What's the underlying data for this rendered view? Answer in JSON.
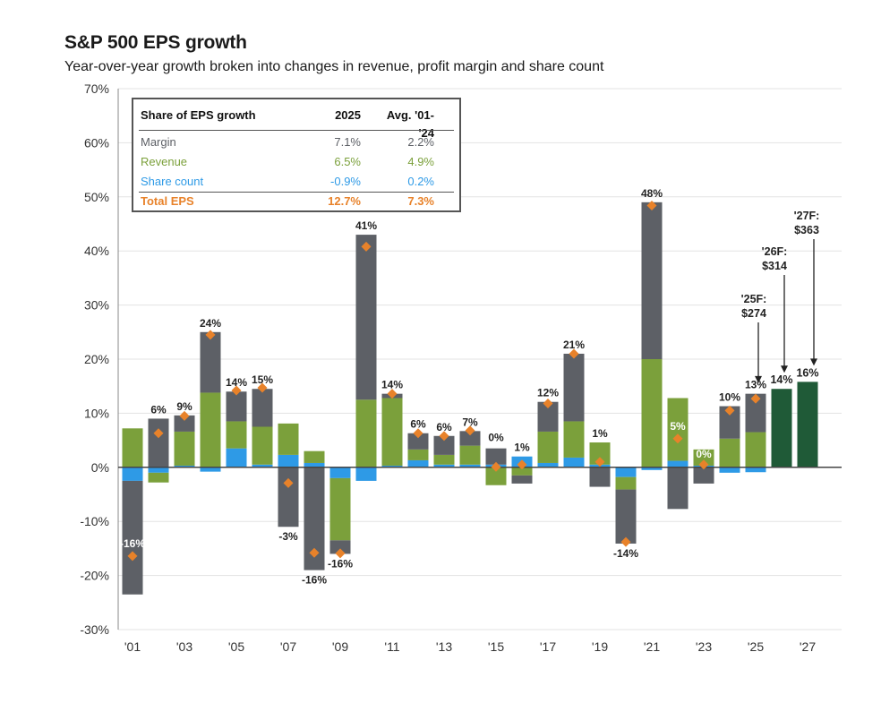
{
  "title": "S&P 500 EPS growth",
  "subtitle": "Year-over-year growth broken into changes in revenue, profit margin and share count",
  "colors": {
    "margin": "#5d6066",
    "revenue": "#7ba03b",
    "share_count": "#2e9ae6",
    "total_eps": "#e8822a",
    "forecast": "#1f5a37",
    "text": "#1a1a1a"
  },
  "legend_table": {
    "header": {
      "label": "Share of EPS growth",
      "col1": "2025",
      "col2": "Avg. '01-'24"
    },
    "rows": [
      {
        "label": "Margin",
        "col1": "7.1%",
        "col2": "2.2%",
        "color": "#5d6066"
      },
      {
        "label": "Revenue",
        "col1": "6.5%",
        "col2": "4.9%",
        "color": "#7ba03b"
      },
      {
        "label": "Share count",
        "col1": "-0.9%",
        "col2": "0.2%",
        "color": "#2e9ae6"
      },
      {
        "label": "Total EPS",
        "col1": "12.7%",
        "col2": "7.3%",
        "color": "#e8822a"
      }
    ]
  },
  "chart_data": {
    "type": "bar",
    "stacked": true,
    "title": "S&P 500 EPS growth",
    "ylim": [
      -30,
      70
    ],
    "yticks": [
      "-30%",
      "-20%",
      "-10%",
      "0%",
      "10%",
      "20%",
      "30%",
      "40%",
      "50%",
      "60%",
      "70%"
    ],
    "ytick_values": [
      -30,
      -20,
      -10,
      0,
      10,
      20,
      30,
      40,
      50,
      60,
      70
    ],
    "grid": true,
    "years": [
      2001,
      2002,
      2003,
      2004,
      2005,
      2006,
      2007,
      2008,
      2009,
      2010,
      2011,
      2012,
      2013,
      2014,
      2015,
      2016,
      2017,
      2018,
      2019,
      2020,
      2021,
      2022,
      2023,
      2024,
      2025
    ],
    "x_tick_labels": [
      "'01",
      "'03",
      "'05",
      "'07",
      "'09",
      "'11",
      "'13",
      "'15",
      "'17",
      "'19",
      "'21",
      "'23",
      "'25",
      "'27"
    ],
    "x_tick_years": [
      2001,
      2003,
      2005,
      2007,
      2009,
      2011,
      2013,
      2015,
      2017,
      2019,
      2021,
      2023,
      2025,
      2027
    ],
    "series": [
      {
        "name": "Share count",
        "color": "#2e9ae6",
        "values": [
          -2.5,
          -1.0,
          0.3,
          -0.8,
          3.5,
          0.5,
          2.3,
          0.8,
          -2.0,
          -2.5,
          0.3,
          1.3,
          0.5,
          0.5,
          0.5,
          2.0,
          0.8,
          1.8,
          0.5,
          -1.8,
          -0.5,
          1.2,
          0.3,
          -1.0,
          -0.9
        ]
      },
      {
        "name": "Revenue",
        "color": "#7ba03b",
        "values": [
          7.2,
          -1.8,
          6.3,
          13.8,
          5.0,
          7.0,
          5.8,
          2.2,
          -11.5,
          12.5,
          12.5,
          2.0,
          1.8,
          3.5,
          -3.3,
          -1.5,
          5.8,
          6.7,
          4.1,
          -2.3,
          20.0,
          11.6,
          3.0,
          5.3,
          6.5
        ]
      },
      {
        "name": "Margin",
        "color": "#5d6066",
        "values": [
          -21.0,
          9.0,
          3.0,
          11.2,
          5.5,
          7.0,
          -11.0,
          -19.0,
          -2.5,
          30.5,
          0.8,
          3.0,
          3.5,
          2.7,
          3.0,
          -1.5,
          5.5,
          12.5,
          -3.6,
          -10.0,
          29.0,
          -7.7,
          -3.0,
          6.0,
          7.1
        ]
      }
    ],
    "total_eps": {
      "name": "Total EPS",
      "color": "#e8822a",
      "values": [
        -16.4,
        6.3,
        9.5,
        24.5,
        14.2,
        14.7,
        -2.9,
        -15.8,
        -15.9,
        40.8,
        13.6,
        6.3,
        5.8,
        6.8,
        0.1,
        0.5,
        11.8,
        21.0,
        1.0,
        -13.8,
        48.4,
        5.3,
        0.5,
        10.5,
        12.7
      ]
    },
    "total_labels": [
      "-16%",
      "6%",
      "9%",
      "24%",
      "14%",
      "15%",
      "-3%",
      "-16%",
      "-16%",
      "41%",
      "14%",
      "6%",
      "6%",
      "7%",
      "0%",
      "1%",
      "12%",
      "21%",
      "1%",
      "-14%",
      "48%",
      "5%",
      "0%",
      "10%",
      "13%"
    ],
    "forecast": [
      {
        "year": 2026,
        "value": 14.5,
        "label": "14%",
        "color": "#1f5a37"
      },
      {
        "year": 2027,
        "value": 15.8,
        "label": "16%",
        "color": "#1f5a37"
      }
    ],
    "forecast_annotations": [
      {
        "year": 2025,
        "line1": "'25F:",
        "line2": "$274"
      },
      {
        "year": 2026,
        "line1": "'26F:",
        "line2": "$314"
      },
      {
        "year": 2027,
        "line1": "'27F:",
        "line2": "$363"
      }
    ]
  }
}
